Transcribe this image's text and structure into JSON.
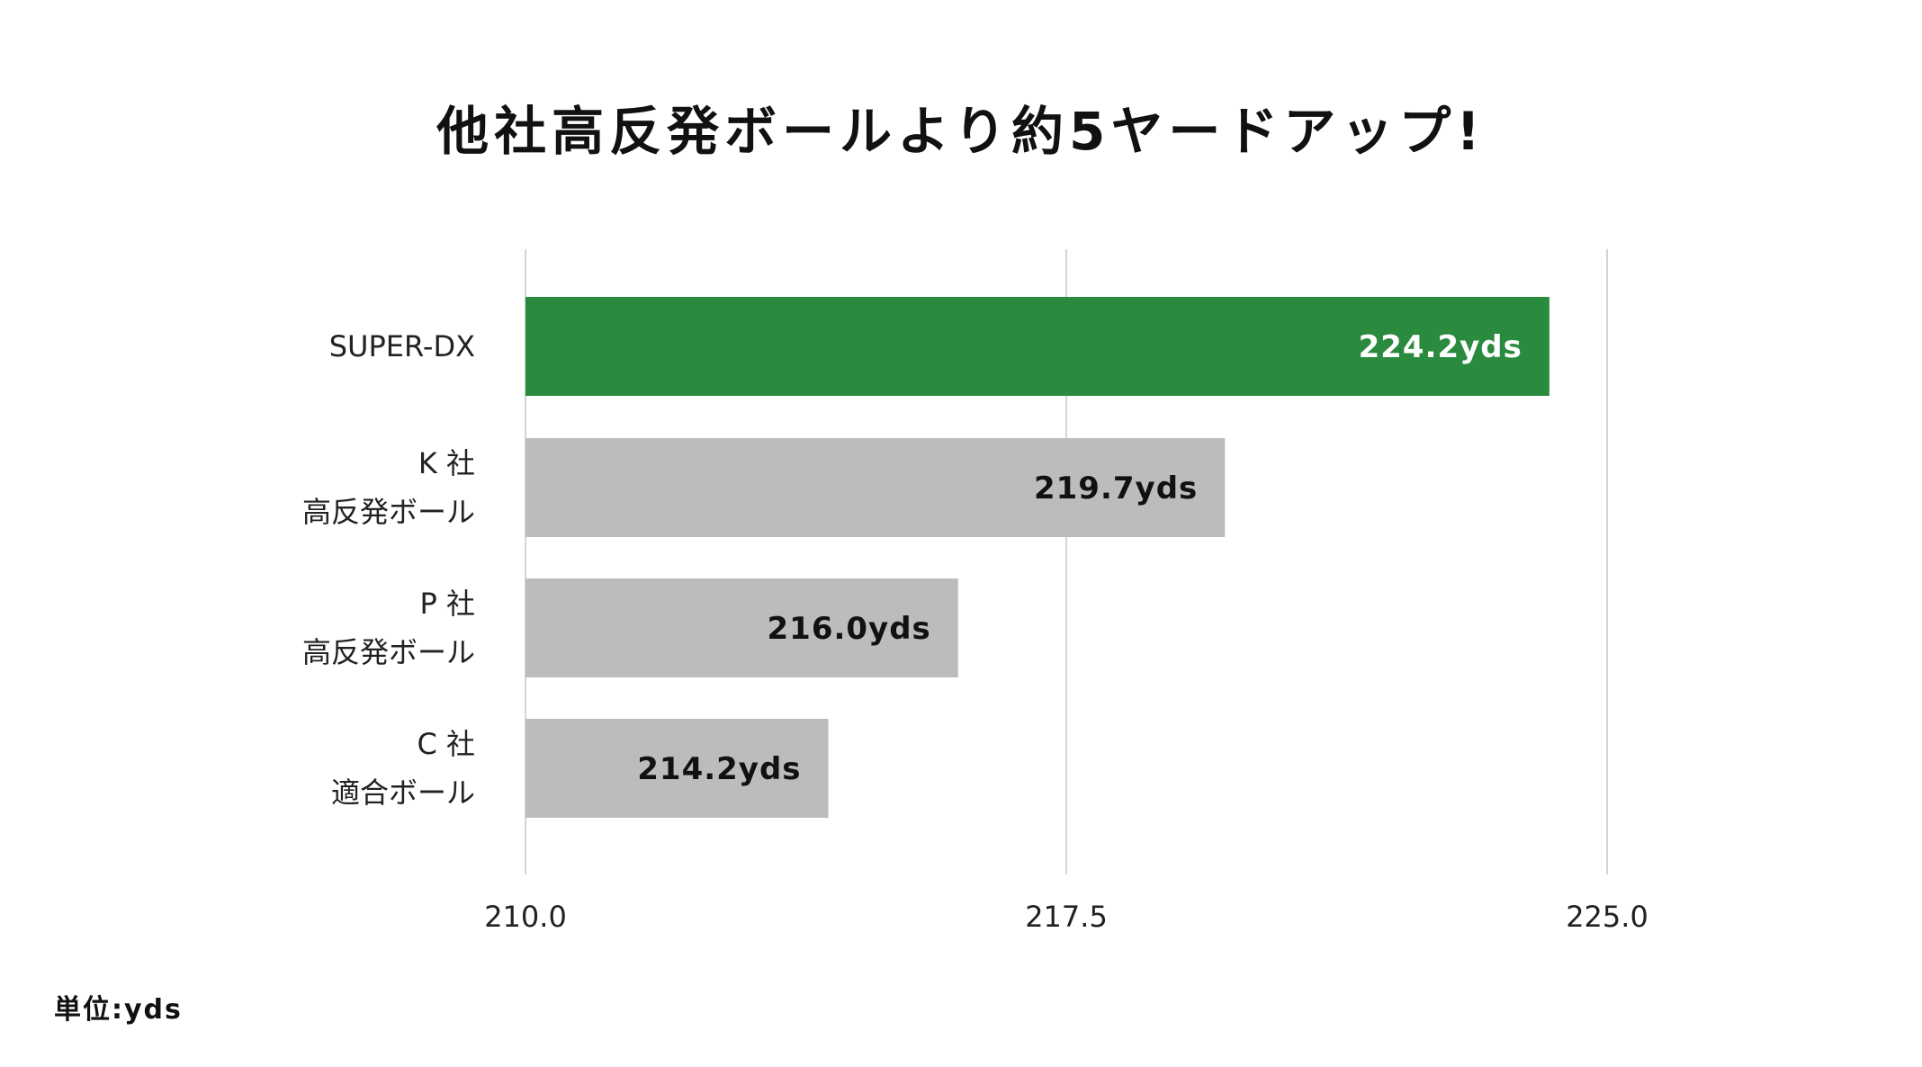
{
  "chart_data": {
    "type": "bar",
    "orientation": "horizontal",
    "title": "他社高反発ボールより約5ヤードアップ!",
    "categories": [
      [
        "SUPER-DX"
      ],
      [
        "K 社",
        "高反発ボール"
      ],
      [
        "P 社",
        "高反発ボール"
      ],
      [
        "C 社",
        "適合ボール"
      ]
    ],
    "values": [
      224.2,
      219.7,
      216.0,
      214.2
    ],
    "value_labels": [
      "224.2yds",
      "219.7yds",
      "216.0yds",
      "214.2yds"
    ],
    "xlim": [
      210.0,
      225.0
    ],
    "x_ticks": [
      "210.0",
      "217.5",
      "225.0"
    ],
    "x_tick_values": [
      210.0,
      217.5,
      225.0
    ],
    "grid": "vertical",
    "unit_note": "単位:yds",
    "colors": {
      "highlight_bar": "#2a8a3e",
      "other_bars": "#bcbcbc",
      "highlight_label": "#ffffff",
      "other_label": "#111111",
      "gridline": "#d4d4d4"
    },
    "highlight_index": 0
  }
}
